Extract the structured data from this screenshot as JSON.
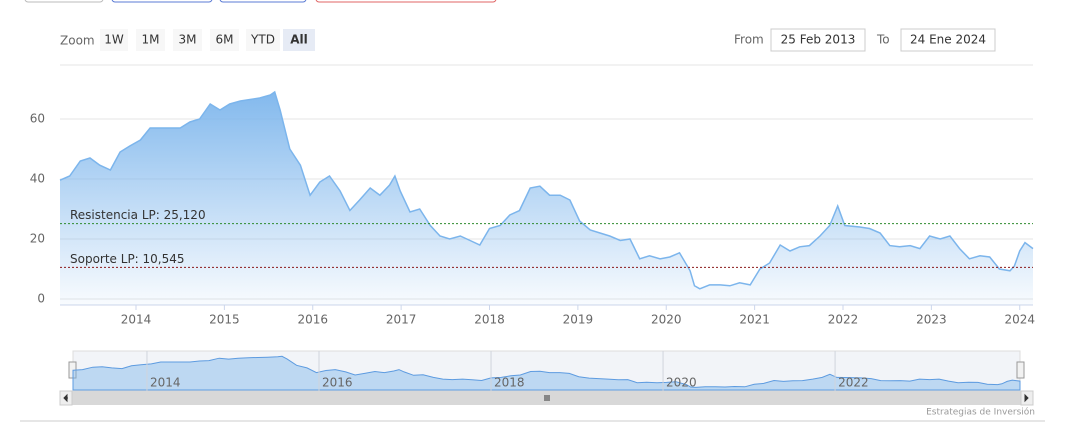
{
  "chart_data": {
    "type": "area",
    "x": [
      2013.14,
      2013.25,
      2013.37,
      2013.48,
      2013.59,
      2013.71,
      2013.82,
      2013.93,
      2014.05,
      2014.16,
      2014.27,
      2014.38,
      2014.5,
      2014.61,
      2014.72,
      2014.84,
      2014.95,
      2015.06,
      2015.18,
      2015.29,
      2015.4,
      2015.52,
      2015.57,
      2015.63,
      2015.74,
      2015.86,
      2015.97,
      2016.08,
      2016.19,
      2016.31,
      2016.42,
      2016.53,
      2016.65,
      2016.76,
      2016.87,
      2016.93,
      2016.99,
      2017.1,
      2017.21,
      2017.33,
      2017.44,
      2017.55,
      2017.67,
      2017.78,
      2017.89,
      2018.0,
      2018.12,
      2018.23,
      2018.34,
      2018.46,
      2018.57,
      2018.68,
      2018.8,
      2018.91,
      2019.02,
      2019.14,
      2019.25,
      2019.36,
      2019.48,
      2019.59,
      2019.7,
      2019.81,
      2019.93,
      2020.04,
      2020.15,
      2020.27,
      2020.32,
      2020.38,
      2020.49,
      2020.61,
      2020.72,
      2020.83,
      2020.95,
      2021.06,
      2021.17,
      2021.29,
      2021.4,
      2021.51,
      2021.62,
      2021.74,
      2021.85,
      2021.94,
      2022.02,
      2022.19,
      2022.3,
      2022.42,
      2022.53,
      2022.64,
      2022.76,
      2022.87,
      2022.98,
      2023.1,
      2023.21,
      2023.32,
      2023.43,
      2023.55,
      2023.66,
      2023.77,
      2023.89,
      2023.94,
      2024.0,
      2024.06,
      2024.15
    ],
    "values": [
      39.6,
      41,
      46,
      47,
      44.6,
      43,
      49,
      51,
      53,
      57,
      57,
      57,
      57,
      59,
      60,
      65,
      63,
      65,
      66,
      66.5,
      67,
      68,
      69,
      63,
      50,
      44.6,
      34.6,
      39,
      41,
      36,
      29.5,
      33,
      37,
      34.6,
      38,
      41,
      36,
      29,
      30,
      24.5,
      21,
      20,
      21,
      19.5,
      18,
      23.5,
      24.5,
      28,
      29.5,
      37,
      37.6,
      34.6,
      34.6,
      33,
      26,
      23,
      22,
      21,
      19.5,
      20,
      13.4,
      14.4,
      13.4,
      14,
      15.4,
      9.4,
      4.4,
      3.4,
      4.7,
      4.7,
      4.4,
      5.4,
      4.7,
      10,
      12,
      18,
      16,
      17.4,
      17.8,
      21,
      24.5,
      31,
      24.5,
      24,
      23.5,
      22,
      17.8,
      17.4,
      17.8,
      16.8,
      21,
      20,
      21,
      16.8,
      13.4,
      14.4,
      14,
      10,
      9.4,
      11,
      16,
      18.8,
      16.8
    ],
    "color": "#7cb5ec",
    "xlim": [
      2013.14,
      2024.15
    ],
    "xticks": [
      2014,
      2015,
      2016,
      2017,
      2018,
      2019,
      2020,
      2021,
      2022,
      2023,
      2024
    ],
    "ylim": [
      -2,
      78
    ],
    "yticks": [
      0,
      20,
      40,
      60
    ],
    "grid": true,
    "plot_lines": [
      {
        "value": 25.12,
        "label": "Resistencia LP: 25,120",
        "color": "#2e8b2e"
      },
      {
        "value": 10.545,
        "label": "Soporte LP: 10,545",
        "color": "#8b1a1a"
      }
    ],
    "navigator_xticks": [
      2014,
      2016,
      2018,
      2020,
      2022
    ]
  },
  "range_selector": {
    "label": "Zoom",
    "buttons": [
      "1W",
      "1M",
      "3M",
      "6M",
      "YTD",
      "All"
    ],
    "selected": 5
  },
  "date_range": {
    "from_label": "From",
    "from": "25 Feb 2013",
    "to_label": "To",
    "to": "24 Ene 2024"
  },
  "credits": "Estrategias de Inversión"
}
